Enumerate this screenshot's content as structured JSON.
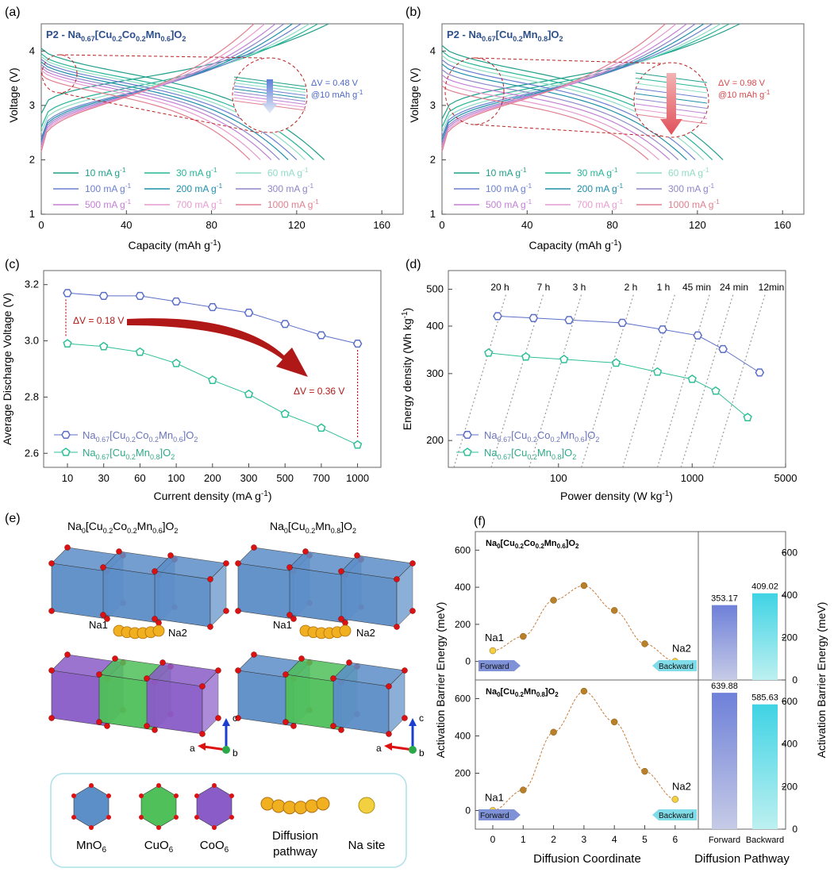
{
  "panels": {
    "a": {
      "label": "(a)",
      "title_main": "P2 - Na",
      "title_sub1": "0.67",
      "title_bracket": "[Cu",
      "title_sub2": "0.2",
      "title_co": "Co",
      "title_sub3": "0.2",
      "title_mn": "Mn",
      "title_sub4": "0.6",
      "title_end": "]O",
      "title_sub5": "2",
      "annotation_dv": "ΔV = 0.48 V",
      "annotation_rate": "@10 mAh g",
      "annotation_rate_sup": "-1"
    },
    "b": {
      "label": "(b)",
      "title_main": "P2 - Na",
      "title_sub1": "0.67",
      "title_bracket": "[Cu",
      "title_sub2": "0.2",
      "title_mn": "Mn",
      "title_sub3": "0.8",
      "title_end": "]O",
      "title_sub4": "2",
      "annotation_dv": "ΔV = 0.98 V",
      "annotation_rate": "@10 mAh g",
      "annotation_rate_sup": "-1"
    },
    "c": {
      "label": "(c)",
      "dv1": "ΔV = 0.18 V",
      "dv2": "ΔV = 0.36 V"
    },
    "d": {
      "label": "(d)"
    },
    "e": {
      "label": "(e)",
      "struct1": "Na",
      "struct1_rest": "[Cu",
      "struct2_rest": "[Cu",
      "na1": "Na1",
      "na2": "Na2",
      "axis_a": "a",
      "axis_b": "b",
      "axis_c": "c",
      "legend": [
        "MnO",
        "CuO",
        "CoO",
        "Diffusion",
        "pathway",
        "Na site"
      ],
      "legend_sub": "6"
    },
    "f": {
      "label": "(f)",
      "na1": "Na1",
      "na2": "Na2",
      "forward": "Forward",
      "backward": "Backward"
    }
  },
  "chart_data": [
    {
      "id": "a",
      "type": "line",
      "title": "P2 - Na0.67[Cu0.2Co0.2Mn0.6]O2",
      "xlabel": "Capacity (mAh g-1)",
      "ylabel": "Voltage (V)",
      "xlim": [
        0,
        170
      ],
      "ylim": [
        1,
        4.5
      ],
      "xticks": [
        0,
        40,
        80,
        120,
        160
      ],
      "yticks": [
        1,
        2,
        3,
        4
      ],
      "series": [
        {
          "name": "10 mA g-1",
          "color": "#1e9f8a",
          "charge_cap": 135,
          "discharge_cap": 133,
          "v_chg_start": 2.85,
          "v_dis_start": 4.05
        },
        {
          "name": "30 mA g-1",
          "color": "#25b596",
          "charge_cap": 130,
          "discharge_cap": 128,
          "v_chg_start": 2.6,
          "v_dis_start": 3.95
        },
        {
          "name": "60 mA g-1",
          "color": "#8fdcc6",
          "charge_cap": 126,
          "discharge_cap": 124,
          "v_chg_start": 2.5,
          "v_dis_start": 3.9
        },
        {
          "name": "100 mA g-1",
          "color": "#6a7fd0",
          "charge_cap": 122,
          "discharge_cap": 120,
          "v_chg_start": 2.4,
          "v_dis_start": 3.85
        },
        {
          "name": "200 mA g-1",
          "color": "#1f8fa8",
          "charge_cap": 118,
          "discharge_cap": 116,
          "v_chg_start": 2.35,
          "v_dis_start": 3.8
        },
        {
          "name": "300 mA g-1",
          "color": "#8e86c8",
          "charge_cap": 114,
          "discharge_cap": 112,
          "v_chg_start": 2.3,
          "v_dis_start": 3.75
        },
        {
          "name": "500 mA g-1",
          "color": "#c37fd6",
          "charge_cap": 110,
          "discharge_cap": 108,
          "v_chg_start": 2.25,
          "v_dis_start": 3.7
        },
        {
          "name": "700 mA g-1",
          "color": "#e69ad0",
          "charge_cap": 105,
          "discharge_cap": 103,
          "v_chg_start": 2.2,
          "v_dis_start": 3.65
        },
        {
          "name": "1000 mA g-1",
          "color": "#e07f8f",
          "charge_cap": 100,
          "discharge_cap": 98,
          "v_chg_start": 2.15,
          "v_dis_start": 3.57
        }
      ]
    },
    {
      "id": "b",
      "type": "line",
      "title": "P2 - Na0.67[Cu0.2Mn0.8]O2",
      "xlabel": "Capacity (mAh g-1)",
      "ylabel": "Voltage (V)",
      "xlim": [
        0,
        170
      ],
      "ylim": [
        1,
        4.5
      ],
      "xticks": [
        0,
        40,
        80,
        120,
        160
      ],
      "yticks": [
        1,
        2,
        3,
        4
      ],
      "series": [
        {
          "name": "10 mA g-1",
          "color": "#1e9f8a",
          "charge_cap": 140,
          "discharge_cap": 132,
          "v_chg_start": 2.75,
          "v_dis_start": 4.1
        },
        {
          "name": "30 mA g-1",
          "color": "#25b596",
          "charge_cap": 135,
          "discharge_cap": 127,
          "v_chg_start": 2.6,
          "v_dis_start": 4.0
        },
        {
          "name": "60 mA g-1",
          "color": "#8fdcc6",
          "charge_cap": 131,
          "discharge_cap": 123,
          "v_chg_start": 2.5,
          "v_dis_start": 3.92
        },
        {
          "name": "100 mA g-1",
          "color": "#6a7fd0",
          "charge_cap": 127,
          "discharge_cap": 119,
          "v_chg_start": 2.42,
          "v_dis_start": 3.84
        },
        {
          "name": "200 mA g-1",
          "color": "#1f8fa8",
          "charge_cap": 123,
          "discharge_cap": 115,
          "v_chg_start": 2.36,
          "v_dis_start": 3.76
        },
        {
          "name": "300 mA g-1",
          "color": "#8e86c8",
          "charge_cap": 119,
          "discharge_cap": 111,
          "v_chg_start": 2.3,
          "v_dis_start": 3.66
        },
        {
          "name": "500 mA g-1",
          "color": "#c37fd6",
          "charge_cap": 115,
          "discharge_cap": 107,
          "v_chg_start": 2.25,
          "v_dis_start": 3.56
        },
        {
          "name": "700 mA g-1",
          "color": "#e69ad0",
          "charge_cap": 110,
          "discharge_cap": 102,
          "v_chg_start": 2.2,
          "v_dis_start": 3.46
        },
        {
          "name": "1000 mA g-1",
          "color": "#e07f8f",
          "charge_cap": 105,
          "discharge_cap": 97,
          "v_chg_start": 2.15,
          "v_dis_start": 3.36
        }
      ]
    },
    {
      "id": "c",
      "type": "line",
      "xlabel": "Current density (mA g-1)",
      "ylabel": "Average Discharge Voltage (V)",
      "ylim": [
        2.55,
        3.25
      ],
      "yticks": [
        2.6,
        2.8,
        3.0,
        3.2
      ],
      "categories": [
        "10",
        "30",
        "60",
        "100",
        "200",
        "300",
        "500",
        "700",
        "1000"
      ],
      "series": [
        {
          "name": "Na0.67[Cu0.2Co0.2Mn0.6]O2",
          "color": "#5b6fc7",
          "marker": "hexagon",
          "values": [
            3.17,
            3.16,
            3.16,
            3.14,
            3.12,
            3.1,
            3.06,
            3.02,
            2.99
          ]
        },
        {
          "name": "Na0.67[Cu0.2Mn0.8]O2",
          "color": "#2fbf97",
          "marker": "pentagon",
          "values": [
            2.99,
            2.98,
            2.96,
            2.92,
            2.86,
            2.81,
            2.74,
            2.69,
            2.63
          ]
        }
      ]
    },
    {
      "id": "d",
      "type": "scatter",
      "xlabel": "Power density (W kg-1)",
      "ylabel": "Energy density (Wh kg-1)",
      "xscale": "log",
      "yscale": "log",
      "xlim": [
        15,
        5000
      ],
      "ylim": [
        170,
        560
      ],
      "xticks": [
        100,
        1000,
        5000
      ],
      "yticks": [
        200,
        300,
        400,
        500
      ],
      "time_labels": [
        "20 h",
        "7 h",
        "3 h",
        "2 h",
        "1 h",
        "45 min",
        "24 min",
        "12min"
      ],
      "series": [
        {
          "name": "Na0.67[Cu0.2Co0.2Mn0.6]O2",
          "color": "#5b6fc7",
          "marker": "hexagon",
          "x": [
            35,
            65,
            120,
            300,
            600,
            1100,
            1700,
            3200
          ],
          "y": [
            425,
            420,
            415,
            408,
            392,
            378,
            348,
            302
          ]
        },
        {
          "name": "Na0.67[Cu0.2Mn0.8]O2",
          "color": "#2fbf97",
          "marker": "pentagon",
          "x": [
            30,
            57,
            110,
            270,
            550,
            1000,
            1500,
            2600
          ],
          "y": [
            340,
            332,
            327,
            320,
            303,
            290,
            270,
            230
          ]
        }
      ]
    },
    {
      "id": "f",
      "type": "line",
      "xlabel": "Diffusion Coordinate",
      "ylabel": "Activation Barrier Energy (meV)",
      "xticks": [
        0,
        1,
        2,
        3,
        4,
        5,
        6
      ],
      "ylim": [
        -100,
        700
      ],
      "yticks": [
        0,
        200,
        400,
        600
      ],
      "series": [
        {
          "name": "Na0[Cu0.2Co0.2Mn0.6]O2",
          "x": [
            0,
            1,
            2,
            3,
            4,
            5,
            6
          ],
          "values": [
            58,
            135,
            330,
            409,
            275,
            95,
            0
          ]
        },
        {
          "name": "Na0[Cu0.2Mn0.8]O2",
          "x": [
            0,
            1,
            2,
            3,
            4,
            5,
            6
          ],
          "values": [
            0,
            110,
            420,
            640,
            475,
            210,
            60
          ]
        }
      ]
    },
    {
      "id": "f-bars",
      "type": "bar",
      "xlabel": "Diffusion Pathway",
      "ylabel": "Activation Barrier Energy (meV)",
      "categories": [
        "Forward",
        "Backward"
      ],
      "ylim": [
        0,
        700
      ],
      "yticks": [
        0,
        200,
        400,
        600
      ],
      "series": [
        {
          "name": "Na0[Cu0.2Co0.2Mn0.6]O2",
          "values": [
            353.17,
            409.02
          ],
          "labels": [
            "353.17",
            "409.02"
          ]
        },
        {
          "name": "Na0[Cu0.2Mn0.8]O2",
          "values": [
            639.88,
            585.63
          ],
          "labels": [
            "639.88",
            "585.63"
          ]
        }
      ]
    }
  ]
}
